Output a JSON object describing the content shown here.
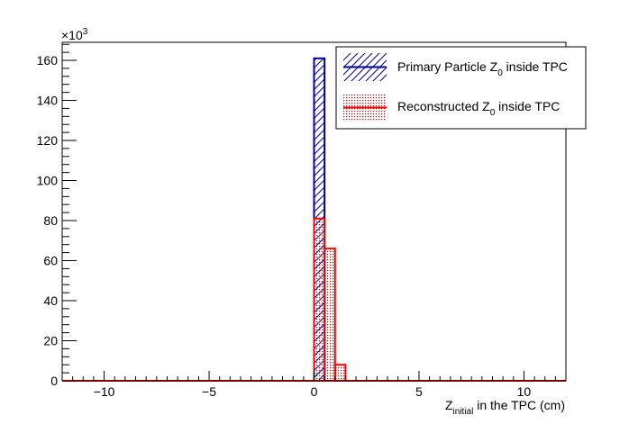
{
  "chart_data": {
    "type": "bar",
    "title": "",
    "xlabel": {
      "main": "Z",
      "sub": "initial",
      "rest": " in the TPC (cm)"
    },
    "ylabel": "",
    "y_multiplier": {
      "base": "×10",
      "exp": "3"
    },
    "xlim": [
      -12,
      12
    ],
    "ylim": [
      0,
      169
    ],
    "x_ticks": [
      -10,
      -5,
      0,
      5,
      10
    ],
    "x_tick_labels": [
      "−10",
      "−5",
      "0",
      "5",
      "10"
    ],
    "y_ticks": [
      0,
      20,
      40,
      60,
      80,
      100,
      120,
      140,
      160
    ],
    "y_tick_labels": [
      "0",
      "20",
      "40",
      "60",
      "80",
      "100",
      "120",
      "140",
      "160"
    ],
    "grid": false,
    "legend_position": "top-right",
    "bin_width": 0.5,
    "series": [
      {
        "name": {
          "main": "Primary Particle Z",
          "sub": "0",
          "rest": " inside TPC"
        },
        "color": "#000099",
        "fill": "hatch",
        "bins": [
          {
            "x0": 0,
            "x1": 0.5,
            "value": 161
          }
        ]
      },
      {
        "name": {
          "main": "Reconstructed Z",
          "sub": "0",
          "rest": " inside TPC"
        },
        "color": "#ff0000",
        "fill": "dots",
        "bins": [
          {
            "x0": 0,
            "x1": 0.5,
            "value": 81
          },
          {
            "x0": 0.5,
            "x1": 1.0,
            "value": 66
          },
          {
            "x0": 1.0,
            "x1": 1.5,
            "value": 8
          }
        ]
      }
    ]
  }
}
